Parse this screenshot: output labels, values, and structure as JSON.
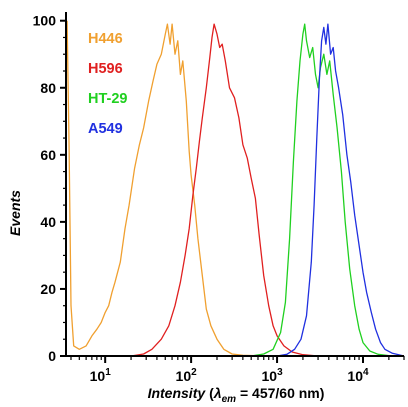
{
  "chart_data": {
    "type": "line",
    "title": "",
    "xlabel": {
      "main": "Intensity",
      "open": "(",
      "lambda": "λ",
      "sub": "em",
      "rest": " = 457/60 nm)"
    },
    "ylabel": "Events",
    "xscale": "log",
    "xlim": [
      3.5,
      30000
    ],
    "ylim": [
      0,
      102
    ],
    "y_ticks": [
      0,
      20,
      40,
      60,
      80,
      100
    ],
    "y_tick_labels": [
      "0",
      "20",
      "40",
      "60",
      "80",
      "100"
    ],
    "x_ticks": [
      10,
      100,
      1000,
      10000
    ],
    "x_tick_labels": [
      {
        "base": "10",
        "exp": "1"
      },
      {
        "base": "10",
        "exp": "2"
      },
      {
        "base": "10",
        "exp": "3"
      },
      {
        "base": "10",
        "exp": "4"
      }
    ],
    "grid": false,
    "legend": "top-left",
    "series": [
      {
        "name": "H446",
        "color": "#f0a030",
        "points": [
          [
            3.6,
            100
          ],
          [
            3.8,
            62
          ],
          [
            4.0,
            15
          ],
          [
            4.3,
            3
          ],
          [
            5,
            2
          ],
          [
            6,
            3
          ],
          [
            7,
            6
          ],
          [
            8,
            8
          ],
          [
            9,
            10
          ],
          [
            10,
            13
          ],
          [
            11,
            15
          ],
          [
            12,
            19
          ],
          [
            13,
            22
          ],
          [
            15,
            28
          ],
          [
            17,
            38
          ],
          [
            19,
            45
          ],
          [
            22,
            56
          ],
          [
            25,
            63
          ],
          [
            28,
            68
          ],
          [
            32,
            76
          ],
          [
            36,
            82
          ],
          [
            40,
            87
          ],
          [
            45,
            90
          ],
          [
            50,
            96
          ],
          [
            53,
            99
          ],
          [
            57,
            93
          ],
          [
            60,
            99
          ],
          [
            65,
            90
          ],
          [
            70,
            94
          ],
          [
            75,
            84
          ],
          [
            80,
            88
          ],
          [
            88,
            76
          ],
          [
            95,
            61
          ],
          [
            100,
            54
          ],
          [
            110,
            45
          ],
          [
            120,
            35
          ],
          [
            135,
            24
          ],
          [
            150,
            14
          ],
          [
            170,
            9
          ],
          [
            200,
            5
          ],
          [
            240,
            2
          ],
          [
            300,
            0.6
          ],
          [
            400,
            0.2
          ],
          [
            700,
            0
          ],
          [
            30000,
            0
          ]
        ]
      },
      {
        "name": "H596",
        "color": "#e02020",
        "points": [
          [
            3.5,
            0
          ],
          [
            20,
            0
          ],
          [
            28,
            0.6
          ],
          [
            35,
            2
          ],
          [
            45,
            5
          ],
          [
            55,
            9
          ],
          [
            65,
            15
          ],
          [
            75,
            22
          ],
          [
            85,
            30
          ],
          [
            95,
            38
          ],
          [
            105,
            48
          ],
          [
            115,
            56
          ],
          [
            125,
            64
          ],
          [
            135,
            71
          ],
          [
            150,
            80
          ],
          [
            165,
            89
          ],
          [
            175,
            95
          ],
          [
            185,
            99
          ],
          [
            200,
            96
          ],
          [
            215,
            92
          ],
          [
            230,
            93
          ],
          [
            250,
            88
          ],
          [
            280,
            80
          ],
          [
            320,
            77
          ],
          [
            360,
            71
          ],
          [
            400,
            63
          ],
          [
            450,
            59
          ],
          [
            500,
            53
          ],
          [
            560,
            47
          ],
          [
            620,
            36
          ],
          [
            700,
            24
          ],
          [
            800,
            15
          ],
          [
            900,
            9
          ],
          [
            1000,
            6
          ],
          [
            1200,
            3
          ],
          [
            1500,
            1.2
          ],
          [
            2000,
            0.4
          ],
          [
            3000,
            0
          ],
          [
            30000,
            0
          ]
        ]
      },
      {
        "name": "HT-29",
        "color": "#20d020",
        "points": [
          [
            3.5,
            0
          ],
          [
            500,
            0
          ],
          [
            700,
            0.6
          ],
          [
            900,
            2
          ],
          [
            1100,
            7
          ],
          [
            1250,
            16
          ],
          [
            1400,
            35
          ],
          [
            1550,
            58
          ],
          [
            1700,
            76
          ],
          [
            1850,
            88
          ],
          [
            2000,
            96
          ],
          [
            2100,
            99
          ],
          [
            2200,
            94
          ],
          [
            2400,
            89
          ],
          [
            2600,
            92
          ],
          [
            2800,
            84
          ],
          [
            3000,
            80
          ],
          [
            3200,
            86
          ],
          [
            3500,
            90
          ],
          [
            3800,
            84
          ],
          [
            4100,
            88
          ],
          [
            4500,
            78
          ],
          [
            5000,
            68
          ],
          [
            5600,
            55
          ],
          [
            6200,
            40
          ],
          [
            7000,
            26
          ],
          [
            8000,
            15
          ],
          [
            9000,
            8
          ],
          [
            10000,
            4
          ],
          [
            12000,
            1.5
          ],
          [
            15000,
            0.5
          ],
          [
            20000,
            0.1
          ],
          [
            30000,
            0
          ]
        ]
      },
      {
        "name": "A549",
        "color": "#2030e0",
        "points": [
          [
            3.5,
            0
          ],
          [
            1000,
            0
          ],
          [
            1300,
            0.5
          ],
          [
            1600,
            2
          ],
          [
            1900,
            5
          ],
          [
            2200,
            12
          ],
          [
            2500,
            28
          ],
          [
            2700,
            45
          ],
          [
            2900,
            65
          ],
          [
            3100,
            82
          ],
          [
            3300,
            94
          ],
          [
            3500,
            98
          ],
          [
            3700,
            93
          ],
          [
            3900,
            99
          ],
          [
            4200,
            90
          ],
          [
            4500,
            92
          ],
          [
            4800,
            85
          ],
          [
            5200,
            80
          ],
          [
            5800,
            72
          ],
          [
            6500,
            60
          ],
          [
            7200,
            52
          ],
          [
            8000,
            42
          ],
          [
            9000,
            33
          ],
          [
            10000,
            25
          ],
          [
            11000,
            19
          ],
          [
            12500,
            13
          ],
          [
            14000,
            8
          ],
          [
            16000,
            4
          ],
          [
            18000,
            2
          ],
          [
            22000,
            0.8
          ],
          [
            30000,
            0
          ]
        ]
      }
    ]
  }
}
